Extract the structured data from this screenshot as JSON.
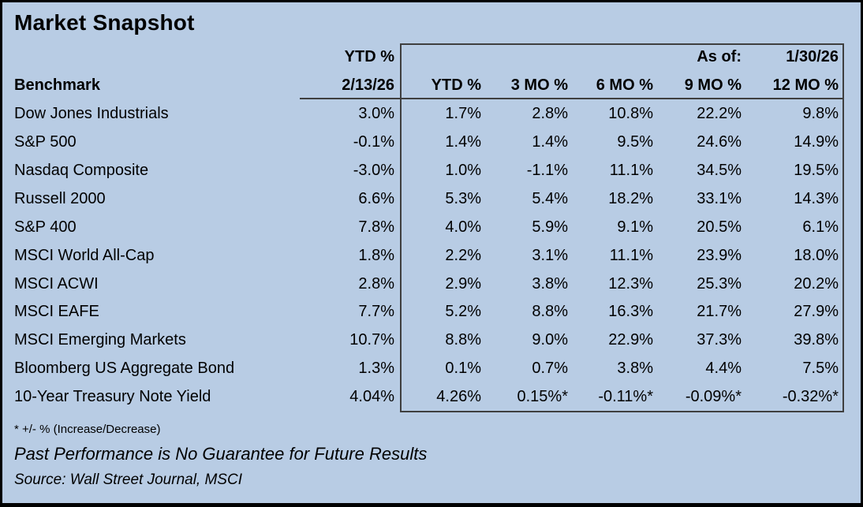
{
  "header": {
    "title": "Market Snapshot",
    "as_of_label": "As of:",
    "as_of_value": "1/30/26",
    "benchmark_label": "Benchmark",
    "left_col_line1": "YTD %",
    "left_col_line2": "2/13/26",
    "period_cols": [
      "YTD %",
      "3 MO %",
      "6 MO %",
      "9 MO %",
      "12 MO %"
    ]
  },
  "footnotes": {
    "asterisk_note": "* +/- % (Increase/Decrease)",
    "disclaimer": "Past Performance is No Guarantee for Future Results",
    "source": "Source: Wall Street Journal, MSCI"
  },
  "colors": {
    "background": "#b8cce4",
    "grid_line": "#3f3f3f",
    "text": "#000000",
    "outer_border": "#000000"
  },
  "chart_data": {
    "type": "table",
    "title": "Market Snapshot",
    "as_of": "1/30/26",
    "columns": [
      "Benchmark",
      "YTD % 2/13/26",
      "YTD %",
      "3 MO %",
      "6 MO %",
      "9 MO %",
      "12 MO %"
    ],
    "rows": [
      [
        "Dow Jones Industrials",
        "3.0%",
        "1.7%",
        "2.8%",
        "10.8%",
        "22.2%",
        "9.8%"
      ],
      [
        "S&P 500",
        "-0.1%",
        "1.4%",
        "1.4%",
        "9.5%",
        "24.6%",
        "14.9%"
      ],
      [
        "Nasdaq Composite",
        "-3.0%",
        "1.0%",
        "-1.1%",
        "11.1%",
        "34.5%",
        "19.5%"
      ],
      [
        "Russell 2000",
        "6.6%",
        "5.3%",
        "5.4%",
        "18.2%",
        "33.1%",
        "14.3%"
      ],
      [
        "S&P 400",
        "7.8%",
        "4.0%",
        "5.9%",
        "9.1%",
        "20.5%",
        "6.1%"
      ],
      [
        "MSCI World All-Cap",
        "1.8%",
        "2.2%",
        "3.1%",
        "11.1%",
        "23.9%",
        "18.0%"
      ],
      [
        "MSCI ACWI",
        "2.8%",
        "2.9%",
        "3.8%",
        "12.3%",
        "25.3%",
        "20.2%"
      ],
      [
        "MSCI EAFE",
        "7.7%",
        "5.2%",
        "8.8%",
        "16.3%",
        "21.7%",
        "27.9%"
      ],
      [
        "MSCI Emerging Markets",
        "10.7%",
        "8.8%",
        "9.0%",
        "22.9%",
        "37.3%",
        "39.8%"
      ],
      [
        "Bloomberg US Aggregate Bond",
        "1.3%",
        "0.1%",
        "0.7%",
        "3.8%",
        "4.4%",
        "7.5%"
      ],
      [
        "10-Year Treasury Note Yield",
        "4.04%",
        "4.26%",
        "0.15%*",
        "-0.11%*",
        "-0.09%*",
        "-0.32%*"
      ]
    ]
  }
}
